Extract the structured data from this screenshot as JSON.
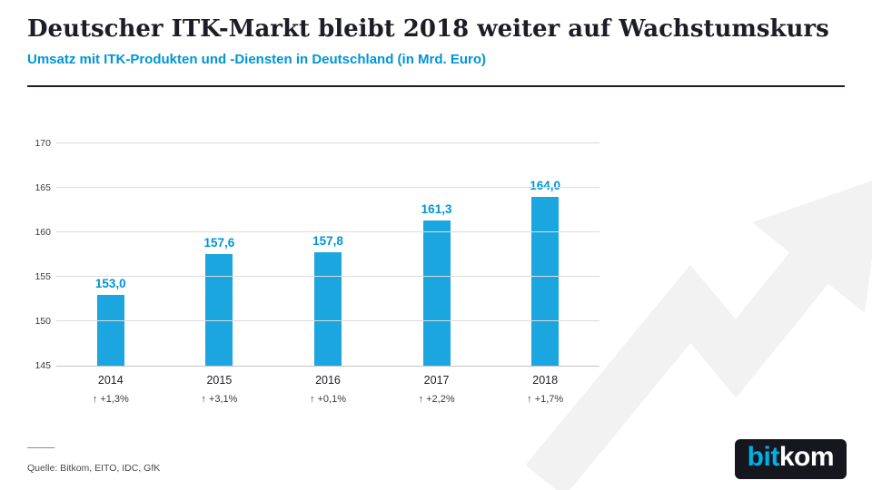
{
  "chart_data": {
    "type": "bar",
    "title": "Deutscher ITK-Markt bleibt 2018 weiter auf Wachstumskurs",
    "subtitle": "Umsatz mit ITK-Produkten und -Diensten in Deutschland (in Mrd. Euro)",
    "categories": [
      "2014",
      "2015",
      "2016",
      "2017",
      "2018"
    ],
    "values": [
      153.0,
      157.6,
      157.8,
      161.3,
      164.0
    ],
    "value_labels": [
      "153,0",
      "157,6",
      "157,8",
      "161,3",
      "164,0"
    ],
    "growth_labels": [
      "↑ +1,3%",
      "↑ +3,1%",
      "↑ +0,1%",
      "↑ +2,2%",
      "↑ +1,7%"
    ],
    "xlabel": "",
    "ylabel": "",
    "ylim": [
      145,
      170
    ],
    "yticks": [
      145,
      150,
      155,
      160,
      165,
      170
    ],
    "grid": "horizontal",
    "legend": "none"
  },
  "colors": {
    "accent": "#0095d6",
    "bar": "#1ba6e0",
    "title": "#1d1d27",
    "watermark": "#f2f2f2",
    "logo_bg": "#16161e",
    "logo_bit": "#00b1e5",
    "logo_kom": "#ffffff"
  },
  "footer": {
    "source": "Quelle: Bitkom, EITO, IDC, GfK",
    "logo_bit": "bit",
    "logo_kom": "kom"
  }
}
